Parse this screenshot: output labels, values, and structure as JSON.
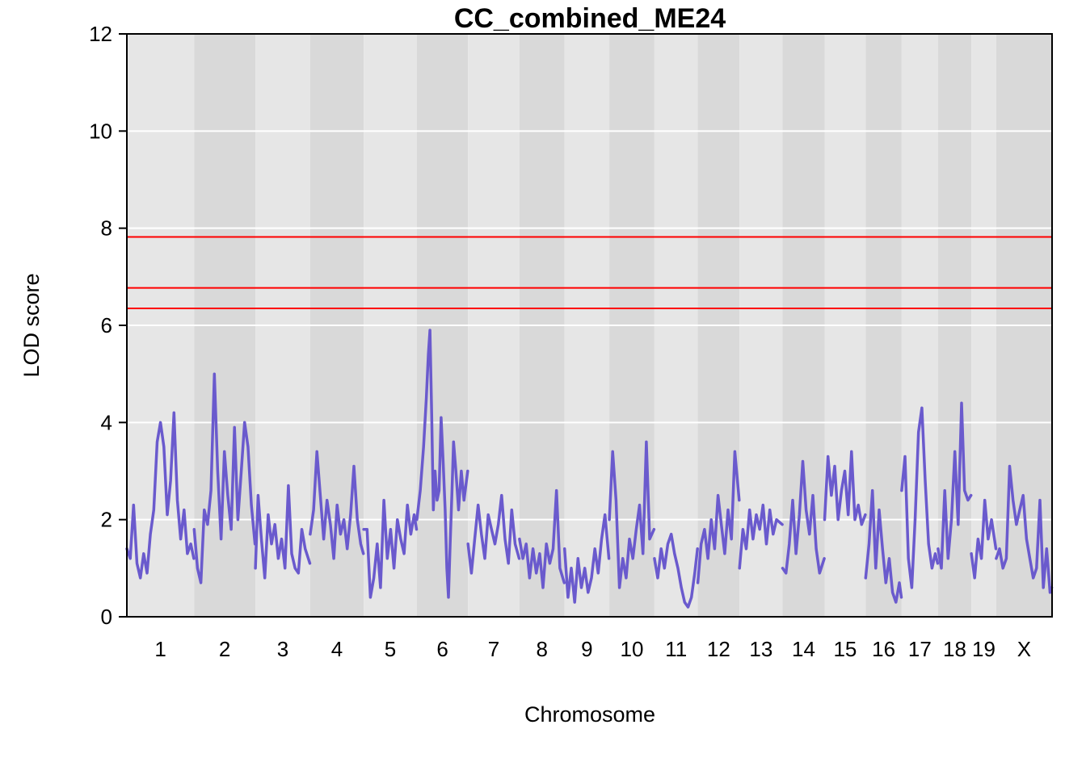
{
  "chart_data": {
    "type": "line",
    "title": "CC_combined_ME24",
    "xlabel": "Chromosome",
    "ylabel": "LOD score",
    "ylim": [
      0,
      12
    ],
    "yticks": [
      0,
      2,
      4,
      6,
      8,
      10,
      12
    ],
    "grid": true,
    "background_bands": [
      "#e6e6e6",
      "#d9d9d9"
    ],
    "gridline_color": "#ffffff",
    "line_color": "#6a5acd",
    "threshold_color": "#ff0000",
    "thresholds": [
      7.82,
      6.77,
      6.35
    ],
    "chromosomes": [
      {
        "label": "1",
        "start": 0,
        "end": 200
      },
      {
        "label": "2",
        "start": 200,
        "end": 382
      },
      {
        "label": "3",
        "start": 382,
        "end": 545
      },
      {
        "label": "4",
        "start": 545,
        "end": 704
      },
      {
        "label": "5",
        "start": 704,
        "end": 862
      },
      {
        "label": "6",
        "start": 862,
        "end": 1014
      },
      {
        "label": "7",
        "start": 1014,
        "end": 1167
      },
      {
        "label": "8",
        "start": 1167,
        "end": 1301
      },
      {
        "label": "9",
        "start": 1301,
        "end": 1434
      },
      {
        "label": "10",
        "start": 1434,
        "end": 1568
      },
      {
        "label": "11",
        "start": 1568,
        "end": 1697
      },
      {
        "label": "12",
        "start": 1697,
        "end": 1821
      },
      {
        "label": "13",
        "start": 1821,
        "end": 1949
      },
      {
        "label": "14",
        "start": 1949,
        "end": 2074
      },
      {
        "label": "15",
        "start": 2074,
        "end": 2196
      },
      {
        "label": "16",
        "start": 2196,
        "end": 2303
      },
      {
        "label": "17",
        "start": 2303,
        "end": 2411
      },
      {
        "label": "18",
        "start": 2411,
        "end": 2510
      },
      {
        "label": "19",
        "start": 2510,
        "end": 2584
      },
      {
        "label": "X",
        "start": 2584,
        "end": 2750
      }
    ],
    "series": [
      {
        "points": [
          [
            0,
            1.4
          ],
          [
            10,
            1.2
          ],
          [
            20,
            2.3
          ],
          [
            30,
            1.1
          ],
          [
            40,
            0.8
          ],
          [
            50,
            1.3
          ],
          [
            60,
            0.9
          ],
          [
            70,
            1.7
          ],
          [
            80,
            2.2
          ],
          [
            90,
            3.6
          ],
          [
            100,
            4.0
          ],
          [
            110,
            3.5
          ],
          [
            120,
            2.1
          ],
          [
            130,
            2.8
          ],
          [
            140,
            4.2
          ],
          [
            150,
            2.4
          ],
          [
            160,
            1.6
          ],
          [
            170,
            2.2
          ],
          [
            180,
            1.3
          ],
          [
            190,
            1.5
          ],
          [
            199,
            1.2
          ],
          [
            200,
            1.8
          ],
          [
            210,
            1.0
          ],
          [
            220,
            0.7
          ],
          [
            230,
            2.2
          ],
          [
            240,
            1.9
          ],
          [
            250,
            2.6
          ],
          [
            260,
            5.0
          ],
          [
            270,
            3.0
          ],
          [
            280,
            1.6
          ],
          [
            290,
            3.4
          ],
          [
            300,
            2.5
          ],
          [
            310,
            1.8
          ],
          [
            320,
            3.9
          ],
          [
            330,
            2.0
          ],
          [
            340,
            3.0
          ],
          [
            350,
            4.0
          ],
          [
            360,
            3.5
          ],
          [
            370,
            2.3
          ],
          [
            381,
            1.5
          ],
          [
            382,
            1.0
          ],
          [
            390,
            2.5
          ],
          [
            400,
            1.6
          ],
          [
            410,
            0.8
          ],
          [
            420,
            2.1
          ],
          [
            430,
            1.5
          ],
          [
            440,
            1.9
          ],
          [
            450,
            1.2
          ],
          [
            460,
            1.6
          ],
          [
            470,
            1.0
          ],
          [
            480,
            2.7
          ],
          [
            490,
            1.3
          ],
          [
            500,
            1.0
          ],
          [
            510,
            0.9
          ],
          [
            520,
            1.8
          ],
          [
            530,
            1.4
          ],
          [
            544,
            1.1
          ],
          [
            545,
            1.7
          ],
          [
            555,
            2.2
          ],
          [
            565,
            3.4
          ],
          [
            575,
            2.5
          ],
          [
            585,
            1.6
          ],
          [
            595,
            2.4
          ],
          [
            605,
            1.9
          ],
          [
            615,
            1.2
          ],
          [
            625,
            2.3
          ],
          [
            635,
            1.7
          ],
          [
            645,
            2.0
          ],
          [
            655,
            1.4
          ],
          [
            665,
            2.1
          ],
          [
            675,
            3.1
          ],
          [
            685,
            2.0
          ],
          [
            695,
            1.5
          ],
          [
            703,
            1.3
          ],
          [
            704,
            1.8
          ],
          [
            714,
            1.8
          ],
          [
            724,
            0.4
          ],
          [
            734,
            0.8
          ],
          [
            744,
            1.5
          ],
          [
            754,
            0.6
          ],
          [
            764,
            2.4
          ],
          [
            774,
            1.2
          ],
          [
            784,
            1.8
          ],
          [
            794,
            1.0
          ],
          [
            804,
            2.0
          ],
          [
            814,
            1.6
          ],
          [
            824,
            1.3
          ],
          [
            834,
            2.3
          ],
          [
            844,
            1.7
          ],
          [
            854,
            2.1
          ],
          [
            861,
            1.8
          ],
          [
            862,
            2.0
          ],
          [
            872,
            2.6
          ],
          [
            882,
            3.5
          ],
          [
            890,
            4.5
          ],
          [
            896,
            5.4
          ],
          [
            901,
            5.9
          ],
          [
            906,
            4.2
          ],
          [
            911,
            2.2
          ],
          [
            916,
            3.0
          ],
          [
            922,
            2.4
          ],
          [
            928,
            2.6
          ],
          [
            934,
            4.1
          ],
          [
            940,
            3.2
          ],
          [
            946,
            2.2
          ],
          [
            951,
            1.0
          ],
          [
            956,
            0.4
          ],
          [
            961,
            1.5
          ],
          [
            966,
            2.5
          ],
          [
            971,
            3.6
          ],
          [
            978,
            3.0
          ],
          [
            986,
            2.2
          ],
          [
            994,
            3.0
          ],
          [
            1002,
            2.4
          ],
          [
            1013,
            3.0
          ],
          [
            1014,
            1.5
          ],
          [
            1024,
            0.9
          ],
          [
            1034,
            1.6
          ],
          [
            1044,
            2.3
          ],
          [
            1054,
            1.7
          ],
          [
            1064,
            1.2
          ],
          [
            1074,
            2.1
          ],
          [
            1084,
            1.8
          ],
          [
            1094,
            1.5
          ],
          [
            1104,
            1.9
          ],
          [
            1114,
            2.5
          ],
          [
            1124,
            1.6
          ],
          [
            1134,
            1.1
          ],
          [
            1144,
            2.2
          ],
          [
            1154,
            1.5
          ],
          [
            1166,
            1.2
          ],
          [
            1167,
            1.6
          ],
          [
            1177,
            1.2
          ],
          [
            1187,
            1.5
          ],
          [
            1197,
            0.8
          ],
          [
            1207,
            1.4
          ],
          [
            1217,
            0.9
          ],
          [
            1227,
            1.3
          ],
          [
            1237,
            0.6
          ],
          [
            1247,
            1.5
          ],
          [
            1257,
            1.1
          ],
          [
            1267,
            1.4
          ],
          [
            1277,
            2.6
          ],
          [
            1287,
            1.0
          ],
          [
            1300,
            0.7
          ],
          [
            1301,
            1.4
          ],
          [
            1311,
            0.4
          ],
          [
            1321,
            1.0
          ],
          [
            1331,
            0.3
          ],
          [
            1341,
            1.2
          ],
          [
            1351,
            0.6
          ],
          [
            1361,
            1.0
          ],
          [
            1371,
            0.5
          ],
          [
            1381,
            0.8
          ],
          [
            1391,
            1.4
          ],
          [
            1401,
            0.9
          ],
          [
            1411,
            1.6
          ],
          [
            1421,
            2.1
          ],
          [
            1433,
            1.2
          ],
          [
            1434,
            2.0
          ],
          [
            1444,
            3.4
          ],
          [
            1454,
            2.4
          ],
          [
            1464,
            0.6
          ],
          [
            1474,
            1.2
          ],
          [
            1484,
            0.8
          ],
          [
            1494,
            1.6
          ],
          [
            1504,
            1.2
          ],
          [
            1514,
            1.8
          ],
          [
            1524,
            2.3
          ],
          [
            1534,
            1.3
          ],
          [
            1544,
            3.6
          ],
          [
            1554,
            1.6
          ],
          [
            1567,
            1.8
          ],
          [
            1568,
            1.2
          ],
          [
            1578,
            0.8
          ],
          [
            1588,
            1.4
          ],
          [
            1598,
            1.0
          ],
          [
            1608,
            1.5
          ],
          [
            1618,
            1.7
          ],
          [
            1628,
            1.3
          ],
          [
            1638,
            1.0
          ],
          [
            1648,
            0.6
          ],
          [
            1658,
            0.3
          ],
          [
            1668,
            0.2
          ],
          [
            1678,
            0.4
          ],
          [
            1688,
            0.9
          ],
          [
            1696,
            1.4
          ],
          [
            1697,
            0.7
          ],
          [
            1707,
            1.5
          ],
          [
            1717,
            1.8
          ],
          [
            1727,
            1.2
          ],
          [
            1737,
            2.0
          ],
          [
            1747,
            1.4
          ],
          [
            1757,
            2.5
          ],
          [
            1767,
            1.9
          ],
          [
            1777,
            1.3
          ],
          [
            1787,
            2.2
          ],
          [
            1797,
            1.6
          ],
          [
            1807,
            3.4
          ],
          [
            1820,
            2.4
          ],
          [
            1821,
            1.0
          ],
          [
            1831,
            1.8
          ],
          [
            1841,
            1.4
          ],
          [
            1851,
            2.2
          ],
          [
            1861,
            1.6
          ],
          [
            1871,
            2.1
          ],
          [
            1881,
            1.8
          ],
          [
            1891,
            2.3
          ],
          [
            1901,
            1.5
          ],
          [
            1911,
            2.2
          ],
          [
            1921,
            1.7
          ],
          [
            1931,
            2.0
          ],
          [
            1948,
            1.9
          ],
          [
            1949,
            1.0
          ],
          [
            1959,
            0.9
          ],
          [
            1969,
            1.5
          ],
          [
            1979,
            2.4
          ],
          [
            1989,
            1.3
          ],
          [
            1999,
            2.1
          ],
          [
            2009,
            3.2
          ],
          [
            2019,
            2.2
          ],
          [
            2029,
            1.7
          ],
          [
            2039,
            2.5
          ],
          [
            2049,
            1.4
          ],
          [
            2059,
            0.9
          ],
          [
            2073,
            1.2
          ],
          [
            2074,
            2.0
          ],
          [
            2084,
            3.3
          ],
          [
            2094,
            2.5
          ],
          [
            2104,
            3.1
          ],
          [
            2114,
            2.0
          ],
          [
            2124,
            2.6
          ],
          [
            2134,
            3.0
          ],
          [
            2144,
            2.1
          ],
          [
            2154,
            3.4
          ],
          [
            2164,
            2.0
          ],
          [
            2174,
            2.3
          ],
          [
            2184,
            1.9
          ],
          [
            2195,
            2.1
          ],
          [
            2196,
            0.8
          ],
          [
            2206,
            1.5
          ],
          [
            2216,
            2.6
          ],
          [
            2226,
            1.0
          ],
          [
            2236,
            2.2
          ],
          [
            2246,
            1.4
          ],
          [
            2256,
            0.7
          ],
          [
            2266,
            1.2
          ],
          [
            2276,
            0.5
          ],
          [
            2286,
            0.3
          ],
          [
            2296,
            0.7
          ],
          [
            2302,
            0.4
          ],
          [
            2303,
            2.6
          ],
          [
            2313,
            3.3
          ],
          [
            2323,
            1.2
          ],
          [
            2333,
            0.6
          ],
          [
            2343,
            2.0
          ],
          [
            2353,
            3.8
          ],
          [
            2363,
            4.3
          ],
          [
            2373,
            2.8
          ],
          [
            2383,
            1.5
          ],
          [
            2393,
            1.0
          ],
          [
            2403,
            1.3
          ],
          [
            2410,
            1.1
          ],
          [
            2411,
            1.4
          ],
          [
            2421,
            1.0
          ],
          [
            2431,
            2.6
          ],
          [
            2441,
            1.2
          ],
          [
            2451,
            2.0
          ],
          [
            2461,
            3.4
          ],
          [
            2471,
            1.9
          ],
          [
            2481,
            4.4
          ],
          [
            2490,
            2.6
          ],
          [
            2500,
            2.4
          ],
          [
            2509,
            2.5
          ],
          [
            2510,
            1.3
          ],
          [
            2520,
            0.8
          ],
          [
            2530,
            1.6
          ],
          [
            2540,
            1.2
          ],
          [
            2550,
            2.4
          ],
          [
            2560,
            1.6
          ],
          [
            2570,
            2.0
          ],
          [
            2583,
            1.4
          ],
          [
            2584,
            1.2
          ],
          [
            2594,
            1.4
          ],
          [
            2604,
            1.0
          ],
          [
            2614,
            1.2
          ],
          [
            2624,
            3.1
          ],
          [
            2634,
            2.4
          ],
          [
            2644,
            1.9
          ],
          [
            2654,
            2.2
          ],
          [
            2664,
            2.5
          ],
          [
            2674,
            1.6
          ],
          [
            2684,
            1.2
          ],
          [
            2694,
            0.8
          ],
          [
            2704,
            1.0
          ],
          [
            2714,
            2.4
          ],
          [
            2724,
            0.6
          ],
          [
            2734,
            1.4
          ],
          [
            2744,
            0.5
          ],
          [
            2749,
            0.6
          ]
        ]
      }
    ]
  }
}
